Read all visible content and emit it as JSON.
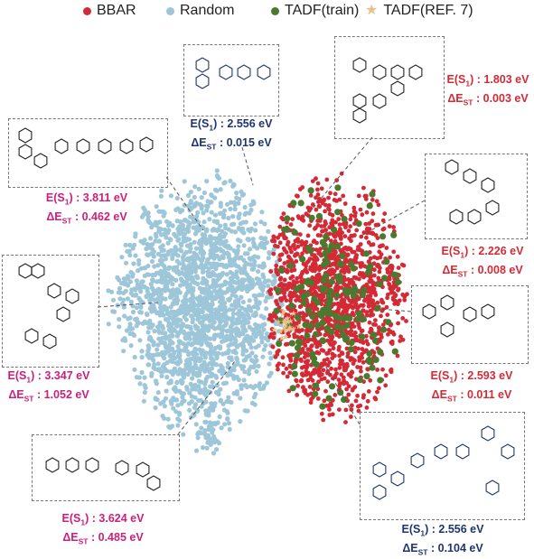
{
  "chart_data": {
    "type": "scatter",
    "legend_position": "top",
    "series": [
      {
        "name": "BBAR",
        "color": "#d42a36"
      },
      {
        "name": "Random",
        "color": "#9ec6d9"
      },
      {
        "name": "TADF(train)",
        "color": "#4a7a2f"
      },
      {
        "name": "TADF(REF. 7)",
        "color": "#e8c08a"
      }
    ],
    "annotations": [
      {
        "id": "a1",
        "label_prefix": "E(S",
        "label_sub": "1",
        "label_suffix": ") : ",
        "value": "2.556 eV",
        "label2_prefix": "ΔE",
        "label2_sub": "ST",
        "label2_suffix": " : ",
        "value2": "0.015 eV",
        "color": "#1e3570"
      },
      {
        "id": "a2",
        "label_prefix": "E(S",
        "label_sub": "1",
        "label_suffix": ") : ",
        "value": "1.803 eV",
        "label2_prefix": "ΔE",
        "label2_sub": "ST",
        "label2_suffix": " : ",
        "value2": "0.003 eV",
        "color": "#d42a36"
      },
      {
        "id": "a3",
        "label_prefix": "E(S",
        "label_sub": "1",
        "label_suffix": ") : ",
        "value": "3.811 eV",
        "label2_prefix": "ΔE",
        "label2_sub": "ST",
        "label2_suffix": " : ",
        "value2": "0.462 eV",
        "color": "#cc1f7a"
      },
      {
        "id": "a4",
        "label_prefix": "E(S",
        "label_sub": "1",
        "label_suffix": ") : ",
        "value": "2.226 eV",
        "label2_prefix": "ΔE",
        "label2_sub": "ST",
        "label2_suffix": " : ",
        "value2": "0.008 eV",
        "color": "#d42a36"
      },
      {
        "id": "a5",
        "label_prefix": "E(S",
        "label_sub": "1",
        "label_suffix": ") : ",
        "value": "3.347 eV",
        "label2_prefix": "ΔE",
        "label2_sub": "ST",
        "label2_suffix": " : ",
        "value2": "1.052 eV",
        "color": "#cc1f7a"
      },
      {
        "id": "a6",
        "label_prefix": "E(S",
        "label_sub": "1",
        "label_suffix": ") : ",
        "value": "2.593 eV",
        "label2_prefix": "ΔE",
        "label2_sub": "ST",
        "label2_suffix": " : ",
        "value2": "0.011 eV",
        "color": "#d42a36"
      },
      {
        "id": "a7",
        "label_prefix": "E(S",
        "label_sub": "1",
        "label_suffix": ") : ",
        "value": "3.624 eV",
        "label2_prefix": "ΔE",
        "label2_sub": "ST",
        "label2_suffix": " : ",
        "value2": "0.485 eV",
        "color": "#cc1f7a"
      },
      {
        "id": "a8",
        "label_prefix": "E(S",
        "label_sub": "1",
        "label_suffix": ") : ",
        "value": "2.556 eV",
        "label2_prefix": "ΔE",
        "label2_sub": "ST",
        "label2_suffix": " : ",
        "value2": "0.104 eV",
        "color": "#1e3570"
      }
    ]
  }
}
